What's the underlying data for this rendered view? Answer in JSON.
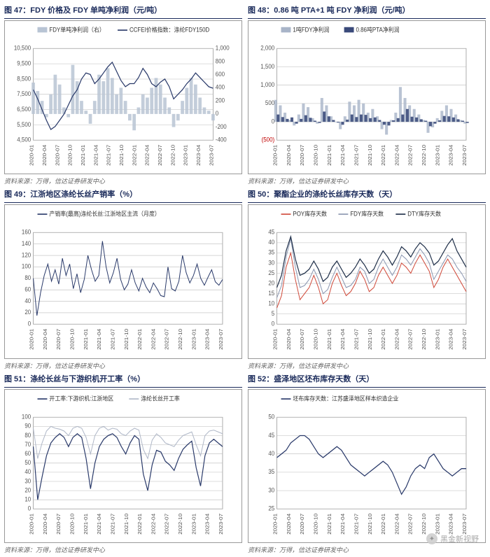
{
  "global": {
    "source_text": "资料来源：万得，信达证券研发中心",
    "watermark_text": "黑金新视野",
    "x_labels": [
      "2020-01",
      "2020-04",
      "2020-07",
      "2020-10",
      "2021-01",
      "2021-04",
      "2021-07",
      "2021-10",
      "2022-01",
      "2022-04",
      "2022-07",
      "2022-10",
      "2023-01",
      "2023-04",
      "2023-07"
    ],
    "background_color": "#ffffff",
    "border_color": "#999999",
    "title_border_color": "#1a2a5a",
    "title_fontsize": 11,
    "axis_fontsize": 8,
    "xlabel_fontsize": 7.5,
    "legend_fontsize": 8,
    "grid_color": "#bbbbbb"
  },
  "charts": [
    {
      "id": "c47",
      "title": "图 47：FDY 价格及 FDY 单吨净利润（元/吨）",
      "type": "combo-bar-line",
      "legend_items": [
        {
          "label": "FDY单吨净利润（右）",
          "color": "#b8c4d4",
          "type": "bar"
        },
        {
          "label": "CCFEI价格指数：涤纶FDY150D",
          "color": "#2a3a6a",
          "type": "line"
        }
      ],
      "left_axis": {
        "min": 4500,
        "max": 10500,
        "ticks": [
          4500,
          5500,
          6500,
          7500,
          8500,
          9500,
          10500
        ]
      },
      "right_axis": {
        "min": -400,
        "max": 1000,
        "ticks": [
          -400,
          -200,
          0,
          200,
          400,
          600,
          800,
          1000
        ]
      },
      "series_bar": {
        "color": "#b8c4d4",
        "opacity": 0.85,
        "values": [
          480,
          350,
          200,
          -50,
          300,
          600,
          450,
          100,
          -50,
          750,
          500,
          200,
          50,
          -150,
          200,
          600,
          500,
          700,
          550,
          300,
          400,
          200,
          -100,
          -250,
          100,
          300,
          250,
          400,
          550,
          450,
          250,
          100,
          -200,
          -100,
          200,
          400,
          550,
          450,
          250,
          100,
          50,
          -100
        ]
      },
      "series_line": {
        "color": "#2a3a6a",
        "width": 1.2,
        "values": [
          7800,
          7200,
          6500,
          5800,
          5200,
          5400,
          5800,
          6200,
          6800,
          7400,
          7800,
          8500,
          8900,
          8800,
          8200,
          8500,
          8900,
          9300,
          9600,
          9000,
          8400,
          8000,
          8200,
          8200,
          8600,
          9200,
          8800,
          8200,
          8000,
          8300,
          8500,
          8000,
          7200,
          7500,
          7800,
          8200,
          8500,
          8900,
          8600,
          8300,
          8000,
          7900
        ]
      }
    },
    {
      "id": "c48",
      "title": "图 48：0.86 吨 PTA+1 吨 FDY 净利润（元/吨）",
      "type": "combo-bar",
      "legend_items": [
        {
          "label": "1吨FDY净利润",
          "color": "#a8b4c8",
          "type": "bar"
        },
        {
          "label": "0.86吨PTA净利润",
          "color": "#3a4a7a",
          "type": "bar"
        }
      ],
      "left_axis": {
        "min": -500,
        "max": 2000,
        "ticks": [
          -500,
          0,
          500,
          1000,
          1500,
          2000
        ],
        "neg_label": "(500)",
        "neg_color": "#c00000"
      },
      "series_bar1": {
        "color": "#a8b4c8",
        "opacity": 0.8,
        "values": [
          600,
          450,
          250,
          50,
          -100,
          200,
          500,
          400,
          100,
          -50,
          650,
          450,
          150,
          0,
          -200,
          150,
          550,
          450,
          600,
          500,
          250,
          350,
          150,
          -200,
          -350,
          50,
          250,
          950,
          650,
          450,
          350,
          200,
          50,
          -300,
          -150,
          100,
          300,
          450,
          350,
          200,
          50,
          -50
        ]
      },
      "series_bar2": {
        "color": "#3a4a7a",
        "opacity": 0.9,
        "values": [
          200,
          130,
          80,
          120,
          -50,
          80,
          180,
          110,
          30,
          -30,
          280,
          150,
          50,
          -20,
          -80,
          60,
          200,
          130,
          200,
          190,
          100,
          120,
          50,
          -80,
          -100,
          40,
          100,
          200,
          350,
          140,
          120,
          70,
          30,
          -120,
          -50,
          40,
          160,
          150,
          120,
          70,
          30,
          -30
        ]
      }
    },
    {
      "id": "c49",
      "title": "图 49：江浙地区涤纶长丝产销率（%）",
      "type": "line",
      "legend_items": [
        {
          "label": "产销率(最高)涤纶长丝:江浙地区主流（月度）",
          "color": "#2a3a6a",
          "type": "line"
        }
      ],
      "left_axis": {
        "min": 0,
        "max": 160,
        "ticks": [
          0,
          20,
          40,
          60,
          80,
          100,
          120,
          140,
          160
        ]
      },
      "series_line": {
        "color": "#2a3a6a",
        "width": 1.0,
        "values": [
          80,
          15,
          55,
          85,
          105,
          75,
          95,
          70,
          115,
          85,
          105,
          62,
          88,
          55,
          78,
          120,
          95,
          75,
          85,
          145,
          100,
          72,
          90,
          115,
          78,
          60,
          70,
          95,
          72,
          58,
          80,
          65,
          55,
          72,
          62,
          50,
          48,
          100,
          62,
          58,
          75,
          120,
          90,
          72,
          85,
          105,
          80,
          68,
          82,
          95,
          74,
          68,
          78
        ]
      }
    },
    {
      "id": "c50",
      "title": "图 50：聚酯企业的涤纶长丝库存天数（天）",
      "type": "multi-line",
      "legend_items": [
        {
          "label": "POY库存天数",
          "color": "#d04a3a",
          "type": "line"
        },
        {
          "label": "FDY库存天数",
          "color": "#8a96b0",
          "type": "line"
        },
        {
          "label": "DTY库存天数",
          "color": "#20304a",
          "type": "line"
        }
      ],
      "left_axis": {
        "min": 0,
        "max": 45,
        "ticks": [
          0,
          5,
          10,
          15,
          20,
          25,
          30,
          35,
          40,
          45
        ]
      },
      "series": [
        {
          "color": "#d04a3a",
          "width": 1.0,
          "values": [
            8,
            14,
            28,
            35,
            22,
            12,
            15,
            18,
            24,
            18,
            10,
            12,
            20,
            25,
            19,
            14,
            16,
            20,
            26,
            22,
            16,
            18,
            24,
            28,
            24,
            20,
            24,
            30,
            28,
            25,
            30,
            34,
            30,
            26,
            18,
            22,
            28,
            32,
            28,
            24,
            20,
            16
          ]
        },
        {
          "color": "#8a96b0",
          "width": 1.0,
          "values": [
            13,
            19,
            33,
            42,
            28,
            18,
            19,
            22,
            27,
            22,
            15,
            17,
            23,
            28,
            23,
            18,
            19,
            22,
            28,
            26,
            20,
            22,
            28,
            32,
            28,
            24,
            28,
            34,
            32,
            29,
            33,
            37,
            34,
            30,
            22,
            26,
            30,
            34,
            32,
            28,
            25,
            21
          ]
        },
        {
          "color": "#20304a",
          "width": 1.2,
          "values": [
            18,
            24,
            36,
            43,
            32,
            24,
            25,
            27,
            31,
            27,
            21,
            23,
            28,
            31,
            27,
            23,
            25,
            28,
            32,
            29,
            25,
            27,
            32,
            36,
            33,
            29,
            33,
            38,
            36,
            33,
            37,
            40,
            38,
            35,
            29,
            31,
            35,
            39,
            42,
            36,
            32,
            28
          ]
        }
      ]
    },
    {
      "id": "c51",
      "title": "图 51：涤纶长丝与下游织机开工率（%）",
      "type": "multi-line",
      "legend_items": [
        {
          "label": "开工率:下游织机:江浙地区",
          "color": "#2a3a6a",
          "type": "line"
        },
        {
          "label": "涤纶长丝开工率",
          "color": "#b0b8c8",
          "type": "line"
        }
      ],
      "left_axis": {
        "min": 0,
        "max": 100,
        "ticks": [
          0,
          10,
          20,
          30,
          40,
          50,
          60,
          70,
          80,
          90,
          100
        ]
      },
      "series": [
        {
          "color": "#b0b8c8",
          "width": 1.0,
          "values": [
            88,
            55,
            72,
            85,
            90,
            88,
            87,
            85,
            80,
            88,
            90,
            88,
            78,
            60,
            80,
            88,
            90,
            86,
            88,
            87,
            82,
            80,
            85,
            88,
            86,
            65,
            55,
            75,
            82,
            78,
            72,
            70,
            68,
            75,
            80,
            82,
            84,
            70,
            58,
            80,
            85,
            86,
            84,
            82
          ]
        },
        {
          "color": "#2a3a6a",
          "width": 1.2,
          "values": [
            68,
            10,
            35,
            58,
            72,
            78,
            82,
            78,
            68,
            78,
            82,
            78,
            55,
            22,
            50,
            68,
            76,
            80,
            82,
            78,
            68,
            60,
            72,
            80,
            76,
            38,
            20,
            48,
            64,
            62,
            52,
            48,
            42,
            55,
            65,
            70,
            74,
            45,
            25,
            58,
            72,
            76,
            72,
            68
          ]
        }
      ]
    },
    {
      "id": "c52",
      "title": "图 52：盛泽地区坯布库存天数（天）",
      "type": "line",
      "legend_items": [
        {
          "label": "坯布库存天数：江苏盛泽地区样本织造企业",
          "color": "#2a3a6a",
          "type": "line"
        }
      ],
      "left_axis": {
        "min": 25,
        "max": 50,
        "ticks": [
          25,
          30,
          35,
          40,
          45,
          50
        ]
      },
      "series_line": {
        "color": "#2a3a6a",
        "width": 1.2,
        "values": [
          39,
          40,
          41,
          43,
          44,
          45,
          45,
          44,
          42,
          40,
          39,
          40,
          41,
          42,
          41,
          39,
          37,
          36,
          35,
          34,
          35,
          36,
          37,
          38,
          37,
          35,
          32,
          29,
          31,
          34,
          36,
          37,
          36,
          39,
          40,
          38,
          36,
          35,
          34,
          35,
          36,
          36
        ]
      }
    }
  ]
}
